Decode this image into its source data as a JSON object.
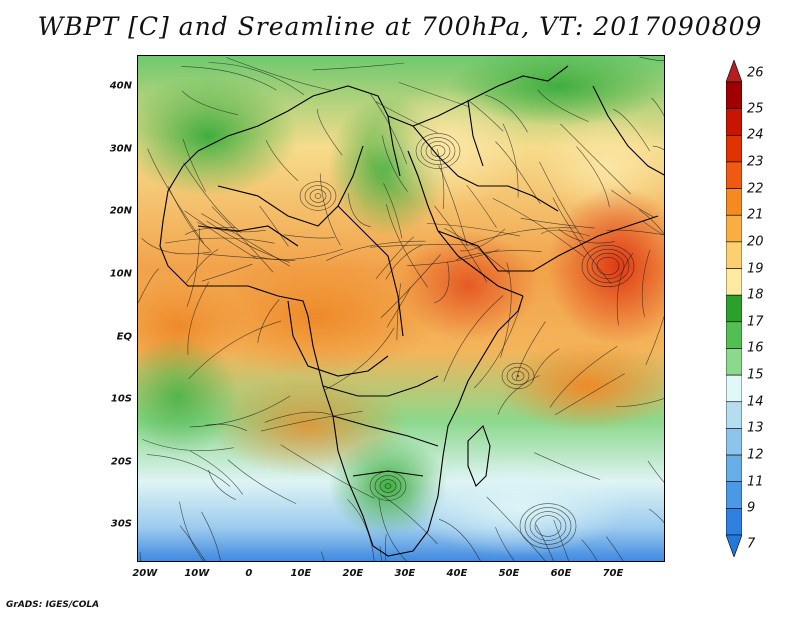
{
  "title": "WBPT [C] and Sreamline at 700hPa, VT: 2017090809",
  "credit": "GrADS: IGES/COLA",
  "lat_labels": [
    "40N",
    "30N",
    "20N",
    "10N",
    "EQ",
    "10S",
    "20S",
    "30S"
  ],
  "lat_values": [
    40,
    30,
    20,
    10,
    0,
    -10,
    -20,
    -30
  ],
  "lon_labels": [
    "20W",
    "10W",
    "0",
    "10E",
    "20E",
    "30E",
    "40E",
    "50E",
    "60E",
    "70E"
  ],
  "lon_values": [
    -20,
    -10,
    0,
    10,
    20,
    30,
    40,
    50,
    60,
    70
  ],
  "extent": {
    "lon_min": -21.5,
    "lon_max": 80,
    "lat_min": -36,
    "lat_max": 45
  },
  "colorbar": {
    "labels": [
      "26",
      "25",
      "24",
      "23",
      "22",
      "21",
      "20",
      "19",
      "18",
      "17",
      "16",
      "15",
      "14",
      "13",
      "12",
      "11",
      "9",
      "7"
    ],
    "colors": [
      "#a00000",
      "#c81400",
      "#e03200",
      "#f05a10",
      "#f58a20",
      "#f8ae40",
      "#fcd070",
      "#fbeaa0",
      "#2ca02c",
      "#53bf53",
      "#8cd88c",
      "#e0f8f8",
      "#b6dcf2",
      "#8dc4ec",
      "#67aee8",
      "#4a98e6",
      "#2e7fe0"
    ],
    "top_arrow_color": "#b41e1e",
    "bottom_arrow_color": "#2478d8"
  }
}
